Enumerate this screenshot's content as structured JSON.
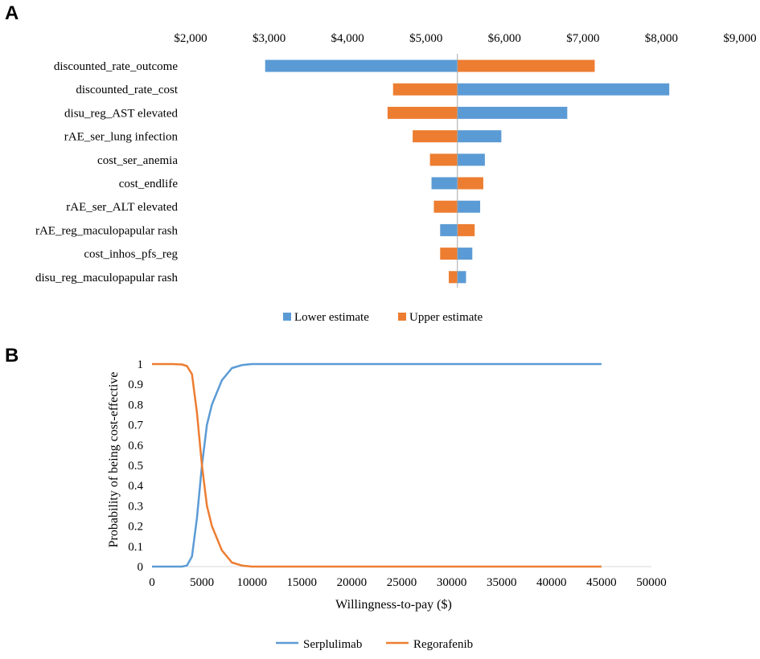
{
  "chart_data": [
    {
      "panel": "A",
      "type": "bar",
      "orientation": "horizontal",
      "subtype": "tornado",
      "base_value": 5400,
      "xlim": [
        2000,
        9000
      ],
      "tick_values": [
        2000,
        3000,
        4000,
        5000,
        6000,
        7000,
        8000,
        9000
      ],
      "tick_labels": [
        "$2,000",
        "$3,000",
        "$4,000",
        "$5,000",
        "$6,000",
        "$7,000",
        "$8,000",
        "$9,000"
      ],
      "axis_position": "top",
      "categories": [
        "discounted_rate_outcome",
        "discounted_rate_cost",
        "disu_reg_AST elevated",
        "rAE_ser_lung infection",
        "cost_ser_anemia",
        "cost_endlife",
        "rAE_ser_ALT elevated",
        "rAE_reg_maculopapular rash",
        "cost_inhos_pfs_reg",
        "disu_reg_maculopapular rash"
      ],
      "series": [
        {
          "name": "Lower estimate",
          "color": "#5b9bd5",
          "values": [
            2950,
            8100,
            6800,
            5960,
            5750,
            5070,
            5690,
            5180,
            5590,
            5510
          ]
        },
        {
          "name": "Upper estimate",
          "color": "#ed7d31",
          "values": [
            7150,
            4580,
            4510,
            4830,
            5050,
            5730,
            5100,
            5620,
            5180,
            5290
          ]
        }
      ],
      "legend": [
        "Lower estimate",
        "Upper estimate"
      ],
      "legend_position": "bottom"
    },
    {
      "panel": "B",
      "type": "line",
      "title": "",
      "xlabel": "Willingness-to-pay ($)",
      "ylabel": "Probability of being cost-effective",
      "xlim": [
        0,
        50000
      ],
      "ylim": [
        0,
        1
      ],
      "x_ticks": [
        0,
        5000,
        10000,
        15000,
        20000,
        25000,
        30000,
        35000,
        40000,
        45000,
        50000
      ],
      "x_tick_labels": [
        "0",
        "5000",
        "10000",
        "15000",
        "20000",
        "25000",
        "30000",
        "35000",
        "40000",
        "45000",
        "50000"
      ],
      "y_ticks": [
        0,
        0.1,
        0.2,
        0.3,
        0.4,
        0.5,
        0.6,
        0.7,
        0.8,
        0.9,
        1
      ],
      "y_tick_labels": [
        "0",
        "0.1",
        "0.2",
        "0.3",
        "0.4",
        "0.5",
        "0.6",
        "0.7",
        "0.8",
        "0.9",
        "1"
      ],
      "x": [
        0,
        1000,
        2000,
        3000,
        3500,
        4000,
        4500,
        5000,
        5500,
        6000,
        7000,
        8000,
        9000,
        10000,
        15000,
        20000,
        25000,
        30000,
        35000,
        40000,
        45000
      ],
      "series": [
        {
          "name": "Serplulimab",
          "color": "#5b9bd5",
          "values": [
            0,
            0,
            0,
            0,
            0.005,
            0.05,
            0.24,
            0.5,
            0.7,
            0.8,
            0.92,
            0.98,
            0.995,
            1,
            1,
            1,
            1,
            1,
            1,
            1,
            1
          ]
        },
        {
          "name": "Regorafenib",
          "color": "#ed7d31",
          "values": [
            1,
            1,
            1,
            0.998,
            0.99,
            0.95,
            0.76,
            0.5,
            0.3,
            0.2,
            0.08,
            0.02,
            0.005,
            0,
            0,
            0,
            0,
            0,
            0,
            0,
            0
          ]
        }
      ],
      "legend": [
        "Serplulimab",
        "Regorafenib"
      ],
      "legend_position": "bottom",
      "grid": false
    }
  ],
  "panel_labels": {
    "a": "A",
    "b": "B"
  }
}
